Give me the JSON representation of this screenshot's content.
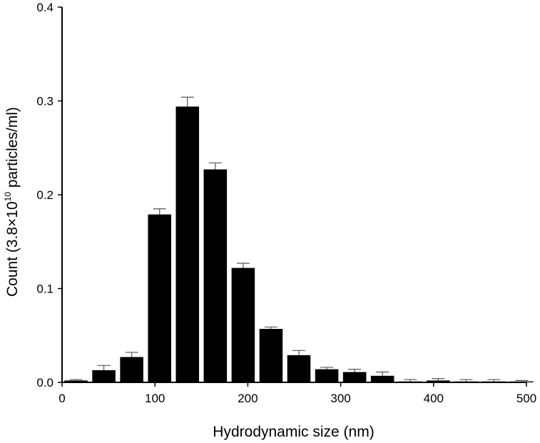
{
  "chart_data": {
    "type": "bar",
    "title": "",
    "xlabel": "Hydrodynamic size (nm)",
    "ylabel": {
      "prefix": "Count (3.8×10",
      "exponent": "10",
      "suffix": " particles/ml)"
    },
    "xlim": [
      0,
      500
    ],
    "ylim": [
      0,
      0.4
    ],
    "xticks": [
      0,
      100,
      200,
      300,
      400,
      500
    ],
    "xtick_labels": [
      "0",
      "100",
      "200",
      "300",
      "400",
      "500"
    ],
    "yticks": [
      0,
      0.1,
      0.2,
      0.3,
      0.4
    ],
    "ytick_labels": [
      "0.0",
      "0.1",
      "0.2",
      "0.3",
      "0.4"
    ],
    "bar_width": 25,
    "bin_centers": [
      15,
      45,
      75,
      105,
      135,
      165,
      195,
      225,
      255,
      285,
      315,
      345,
      375,
      405,
      435,
      465,
      495
    ],
    "values": [
      0.002,
      0.013,
      0.027,
      0.179,
      0.294,
      0.227,
      0.122,
      0.057,
      0.029,
      0.014,
      0.011,
      0.007,
      0.001,
      0.002,
      0.001,
      0.001,
      0.001
    ],
    "errors": [
      0.001,
      0.005,
      0.005,
      0.006,
      0.01,
      0.007,
      0.005,
      0.002,
      0.005,
      0.002,
      0.003,
      0.004,
      0.002,
      0.002,
      0.002,
      0.002,
      0.001
    ],
    "bar_color": "#000000",
    "error_bar_color": "#555555",
    "grid": false
  }
}
